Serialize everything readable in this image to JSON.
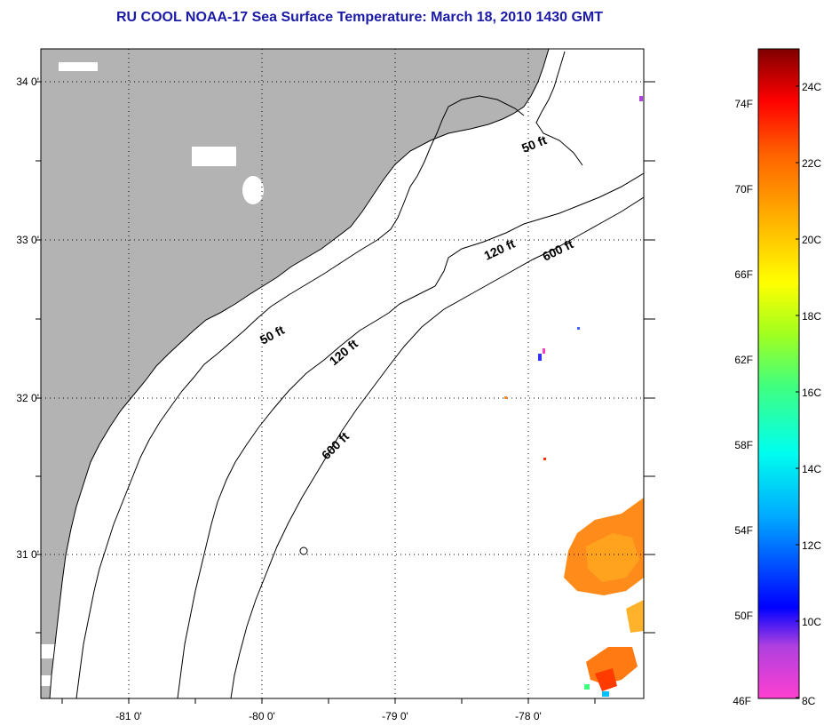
{
  "title": "RU COOL  NOAA-17  Sea Surface Temperature:  March 18, 2010 1430 GMT",
  "colors": {
    "land": "#b3b3b3",
    "ocean": "#ffffff",
    "title": "#1a1aa6"
  },
  "map": {
    "lat_labels": [
      {
        "label": "34 0'",
        "lat": 34
      },
      {
        "label": "33 0'",
        "lat": 33
      },
      {
        "label": "32 0'",
        "lat": 32
      },
      {
        "label": "31 0'",
        "lat": 31
      }
    ],
    "lon_labels": [
      {
        "label": "-81 0'",
        "lon": -81
      },
      {
        "label": "-80 0'",
        "lon": -80
      },
      {
        "label": "-79 0'",
        "lon": -79
      },
      {
        "label": "-78 0'",
        "lon": -78
      }
    ],
    "contour_labels": [
      {
        "text": "50 ft",
        "id": "50ft-north"
      },
      {
        "text": "50 ft",
        "id": "50ft-south"
      },
      {
        "text": "120 ft",
        "id": "120ft-north"
      },
      {
        "text": "120 ft",
        "id": "120ft-south"
      },
      {
        "text": "600 ft",
        "id": "600ft-north"
      },
      {
        "text": "600 ft",
        "id": "600ft-south"
      }
    ]
  },
  "colorbar": {
    "fahrenheit": [
      "74F",
      "70F",
      "66F",
      "62F",
      "58F",
      "54F",
      "50F",
      "46F"
    ],
    "celsius": [
      "24C",
      "22C",
      "20C",
      "18C",
      "16C",
      "14C",
      "12C",
      "10C",
      "8C"
    ],
    "range_c": [
      8,
      25
    ]
  }
}
